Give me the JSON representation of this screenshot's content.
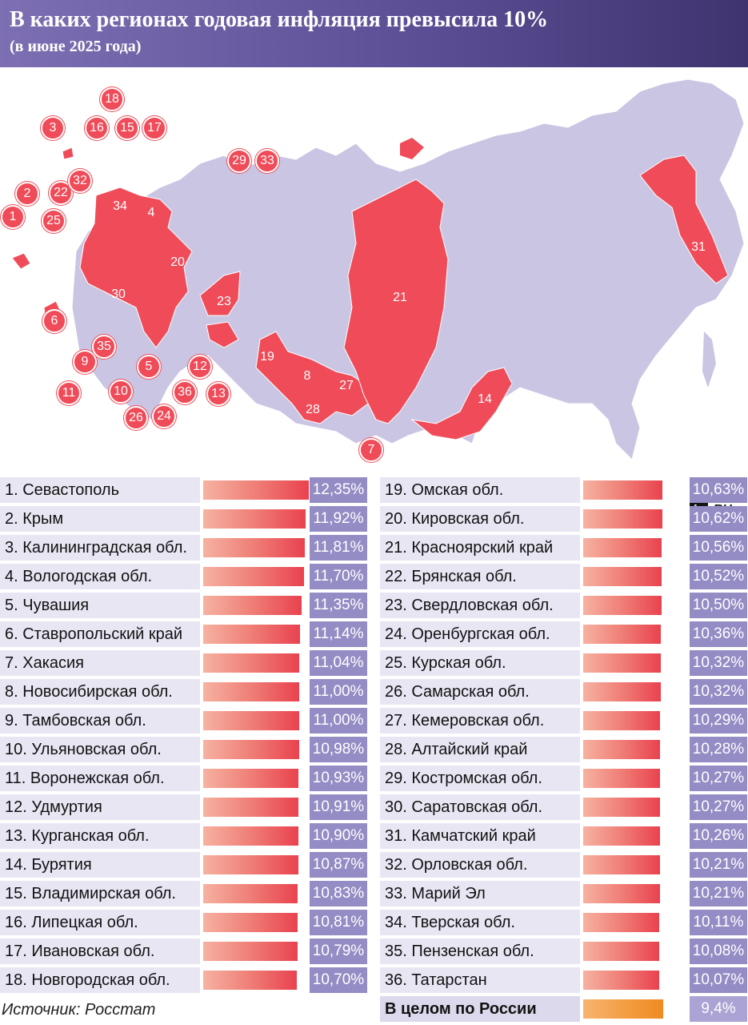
{
  "header": {
    "title": "В каких регионах годовая инфляция превысила 10%",
    "subtitle": "(в июне 2025 года)"
  },
  "logo": {
    "brand": "iz",
    "domain": ".RU"
  },
  "map": {
    "labels": [
      "1",
      "2",
      "3",
      "4",
      "5",
      "6",
      "7",
      "8",
      "9",
      "10",
      "11",
      "12",
      "13",
      "14",
      "15",
      "16",
      "17",
      "18",
      "19",
      "20",
      "21",
      "22",
      "23",
      "24",
      "25",
      "26",
      "27",
      "28",
      "29",
      "30",
      "31",
      "32",
      "33",
      "34",
      "35",
      "36"
    ],
    "colors": {
      "highlight": "#ef4b58",
      "base": "#c9c5e3",
      "border": "#ffffff"
    }
  },
  "source": "Источник: Росстат",
  "colors": {
    "header_start": "#7d6fb2",
    "header_end": "#3f336f",
    "bar_red": "#e9424f",
    "bar_orange": "#ee8a22",
    "value_bg": "#948cc4",
    "row_bg": "#e8e6f3"
  },
  "chart_data": {
    "type": "bar",
    "orientation": "horizontal",
    "title": "В каких регионах годовая инфляция превысила 10%",
    "subtitle": "(в июне 2025 года)",
    "unit": "%",
    "categories": [
      "1. Севастополь",
      "2. Крым",
      "3. Калининградская обл.",
      "4. Вологодская обл.",
      "5. Чувашия",
      "6. Ставропольский край",
      "7. Хакасия",
      "8. Новосибирская обл.",
      "9. Тамбовская обл.",
      "10. Ульяновская обл.",
      "11. Воронежская обл.",
      "12. Удмуртия",
      "13. Курганская обл.",
      "14. Бурятия",
      "15. Владимирская обл.",
      "16. Липецкая обл.",
      "17. Ивановская обл.",
      "18. Новгородская обл.",
      "19. Омская обл.",
      "20. Кировская обл.",
      "21. Красноярский край",
      "22. Брянская обл.",
      "23. Свердловская обл.",
      "24. Оренбургская обл.",
      "25. Курская обл.",
      "26. Самарская обл.",
      "27. Кемеровская обл.",
      "28. Алтайский край",
      "29. Костромская обл.",
      "30. Саратовская обл.",
      "31. Камчатский край",
      "32. Орловская обл.",
      "33. Марий Эл",
      "34. Тверская обл.",
      "35. Пензенская обл.",
      "36. Татарстан",
      "В целом по России"
    ],
    "values": [
      12.35,
      11.92,
      11.81,
      11.7,
      11.35,
      11.14,
      11.04,
      11.0,
      11.0,
      10.98,
      10.93,
      10.91,
      10.9,
      10.87,
      10.83,
      10.81,
      10.79,
      10.7,
      10.63,
      10.62,
      10.56,
      10.52,
      10.5,
      10.36,
      10.32,
      10.32,
      10.29,
      10.28,
      10.27,
      10.27,
      10.26,
      10.21,
      10.21,
      10.11,
      10.08,
      10.07,
      9.4
    ],
    "value_labels": [
      "12,35%",
      "11,92%",
      "11,81%",
      "11,70%",
      "11,35%",
      "11,14%",
      "11,04%",
      "11,00%",
      "11,00%",
      "10,98%",
      "10,93%",
      "10,91%",
      "10,90%",
      "10,87%",
      "10,83%",
      "10,81%",
      "10,79%",
      "10,70%",
      "10,63%",
      "10,62%",
      "10,56%",
      "10,52%",
      "10,50%",
      "10,36%",
      "10,32%",
      "10,32%",
      "10,29%",
      "10,28%",
      "10,27%",
      "10,27%",
      "10,26%",
      "10,21%",
      "10,21%",
      "10,11%",
      "10,08%",
      "10,07%",
      "9,4%"
    ]
  }
}
